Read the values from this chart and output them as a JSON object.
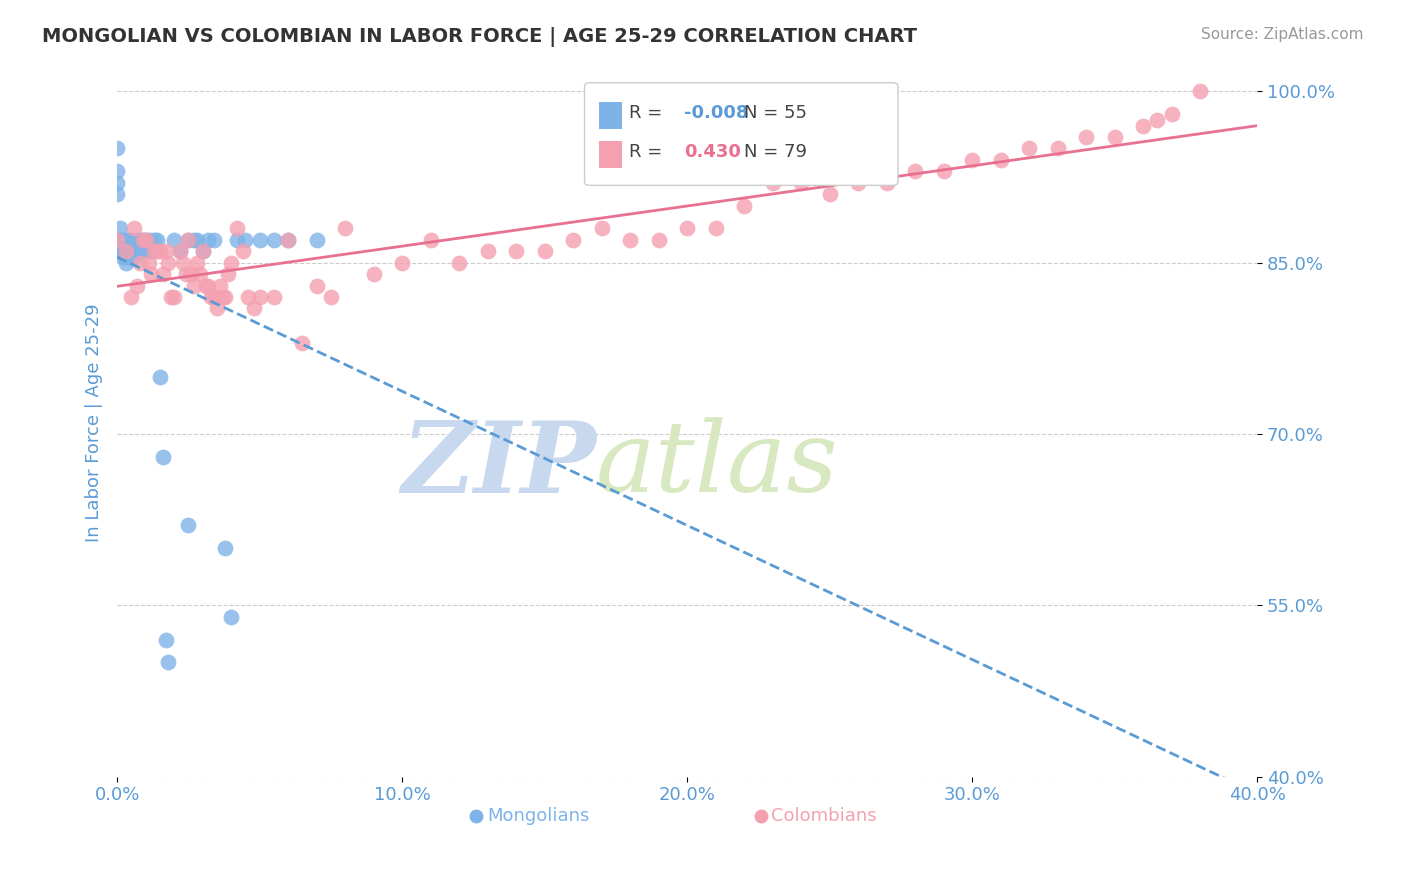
{
  "title": "MONGOLIAN VS COLOMBIAN IN LABOR FORCE | AGE 25-29 CORRELATION CHART",
  "source": "Source: ZipAtlas.com",
  "ylabel": "In Labor Force | Age 25-29",
  "xlim": [
    0.0,
    0.4
  ],
  "ylim": [
    0.4,
    1.02
  ],
  "yticks": [
    0.4,
    0.55,
    0.7,
    0.85,
    1.0
  ],
  "xticks": [
    0.0,
    0.1,
    0.2,
    0.3,
    0.4
  ],
  "mongolian_color": "#7eb3e8",
  "colombian_color": "#f4a0b0",
  "trend_mongolian_color": "#5b9bd5",
  "trend_colombian_color": "#e87090",
  "r_mongolian": -0.008,
  "n_mongolian": 55,
  "r_colombian": 0.43,
  "n_colombian": 79,
  "background_color": "#ffffff",
  "grid_color": "#cccccc",
  "title_color": "#333333",
  "axis_label_color": "#5b9bd5",
  "tick_label_color": "#5b9bd5",
  "watermark_text": "ZIPatlas",
  "watermark_color": "#d0dff0",
  "mongolian_x": [
    0.0,
    0.0,
    0.0,
    0.0,
    0.0,
    0.001,
    0.001,
    0.001,
    0.002,
    0.002,
    0.002,
    0.003,
    0.003,
    0.003,
    0.003,
    0.004,
    0.004,
    0.004,
    0.005,
    0.005,
    0.005,
    0.006,
    0.006,
    0.007,
    0.007,
    0.008,
    0.008,
    0.009,
    0.01,
    0.01,
    0.011,
    0.012,
    0.013,
    0.014,
    0.015,
    0.016,
    0.017,
    0.018,
    0.02,
    0.022,
    0.025,
    0.025,
    0.027,
    0.028,
    0.03,
    0.032,
    0.034,
    0.038,
    0.04,
    0.042,
    0.045,
    0.05,
    0.055,
    0.06,
    0.07
  ],
  "mongolian_y": [
    0.95,
    0.93,
    0.92,
    0.91,
    0.86,
    0.88,
    0.87,
    0.86,
    0.87,
    0.86,
    0.855,
    0.87,
    0.86,
    0.855,
    0.85,
    0.87,
    0.86,
    0.855,
    0.87,
    0.86,
    0.855,
    0.86,
    0.855,
    0.87,
    0.86,
    0.87,
    0.86,
    0.87,
    0.87,
    0.86,
    0.87,
    0.86,
    0.87,
    0.87,
    0.75,
    0.68,
    0.52,
    0.5,
    0.87,
    0.86,
    0.87,
    0.62,
    0.87,
    0.87,
    0.86,
    0.87,
    0.87,
    0.6,
    0.54,
    0.87,
    0.87,
    0.87,
    0.87,
    0.87,
    0.87
  ],
  "colombian_x": [
    0.0,
    0.003,
    0.005,
    0.006,
    0.007,
    0.008,
    0.009,
    0.01,
    0.011,
    0.012,
    0.013,
    0.014,
    0.015,
    0.016,
    0.017,
    0.018,
    0.019,
    0.02,
    0.022,
    0.023,
    0.024,
    0.025,
    0.026,
    0.027,
    0.028,
    0.029,
    0.03,
    0.031,
    0.032,
    0.033,
    0.034,
    0.035,
    0.036,
    0.037,
    0.038,
    0.039,
    0.04,
    0.042,
    0.044,
    0.046,
    0.048,
    0.05,
    0.055,
    0.06,
    0.065,
    0.07,
    0.075,
    0.08,
    0.09,
    0.1,
    0.11,
    0.12,
    0.13,
    0.14,
    0.15,
    0.16,
    0.17,
    0.18,
    0.19,
    0.2,
    0.21,
    0.22,
    0.23,
    0.24,
    0.25,
    0.26,
    0.27,
    0.28,
    0.29,
    0.3,
    0.31,
    0.32,
    0.33,
    0.34,
    0.35,
    0.36,
    0.365,
    0.37,
    0.38
  ],
  "colombian_y": [
    0.87,
    0.86,
    0.82,
    0.88,
    0.83,
    0.85,
    0.87,
    0.87,
    0.85,
    0.84,
    0.86,
    0.86,
    0.86,
    0.84,
    0.86,
    0.85,
    0.82,
    0.82,
    0.86,
    0.85,
    0.84,
    0.87,
    0.84,
    0.83,
    0.85,
    0.84,
    0.86,
    0.83,
    0.83,
    0.82,
    0.82,
    0.81,
    0.83,
    0.82,
    0.82,
    0.84,
    0.85,
    0.88,
    0.86,
    0.82,
    0.81,
    0.82,
    0.82,
    0.87,
    0.78,
    0.83,
    0.82,
    0.88,
    0.84,
    0.85,
    0.87,
    0.85,
    0.86,
    0.86,
    0.86,
    0.87,
    0.88,
    0.87,
    0.87,
    0.88,
    0.88,
    0.9,
    0.92,
    0.92,
    0.91,
    0.92,
    0.92,
    0.93,
    0.93,
    0.94,
    0.94,
    0.95,
    0.95,
    0.96,
    0.96,
    0.97,
    0.975,
    0.98,
    1.0
  ]
}
